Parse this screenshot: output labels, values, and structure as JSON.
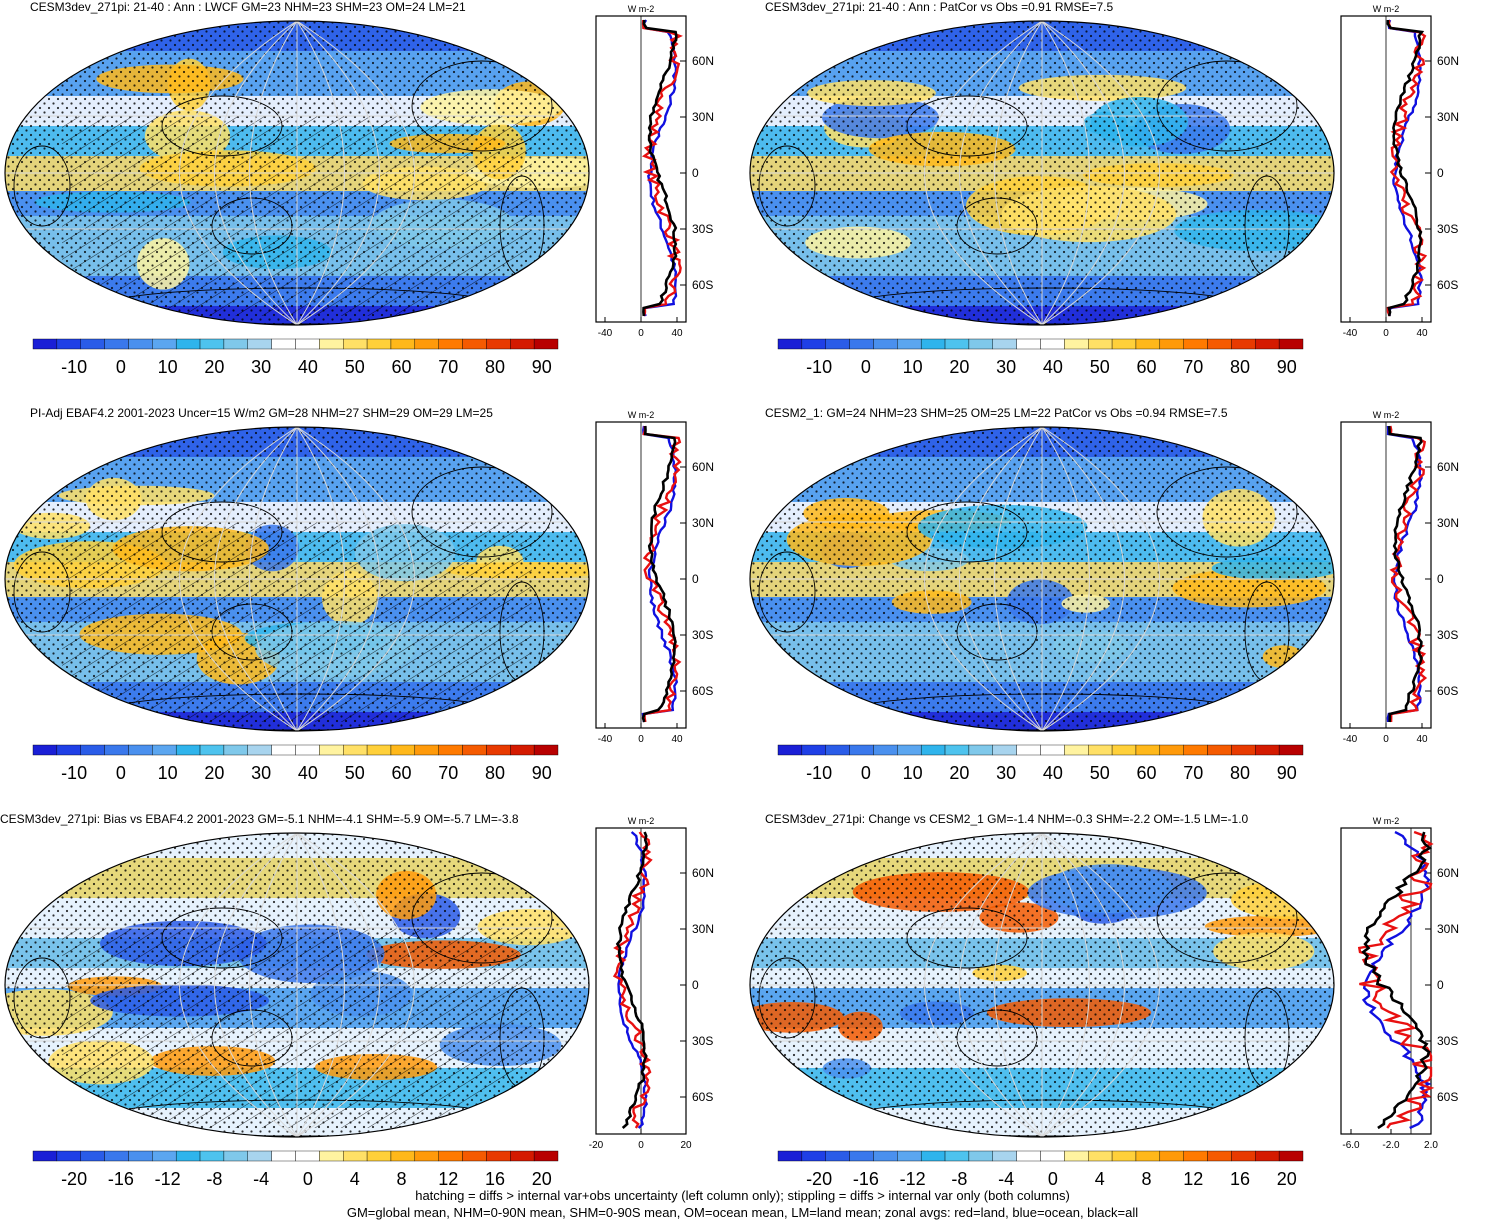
{
  "panels": [
    {
      "title": "CESM3dev_271pi: 21-40 : Ann : LWCF GM=23 NHM=23 SHM=23 OM=24 LM=21",
      "colorbar": {
        "labels": [
          "-10",
          "0",
          "10",
          "20",
          "30",
          "40",
          "50",
          "60",
          "70",
          "80",
          "90"
        ]
      },
      "zonal": {
        "units": "W m-2",
        "lat_labels": [
          "60N",
          "30N",
          "0",
          "30S",
          "60S"
        ],
        "x_ticks": [
          "-40",
          "0",
          "40"
        ],
        "xlim": [
          -50,
          50
        ]
      },
      "hatched": true
    },
    {
      "title": "CESM3dev_271pi: 21-40 : Ann : PatCor vs Obs =0.91 RMSE=7.5",
      "colorbar": {
        "labels": [
          "-10",
          "0",
          "10",
          "20",
          "30",
          "40",
          "50",
          "60",
          "70",
          "80",
          "90"
        ]
      },
      "zonal": {
        "units": "W m-2",
        "lat_labels": [
          "60N",
          "30N",
          "0",
          "30S",
          "60S"
        ],
        "x_ticks": [
          "-40",
          "0",
          "40"
        ],
        "xlim": [
          -50,
          50
        ]
      },
      "hatched": false
    },
    {
      "title": "PI-Adj EBAF4.2 2001-2023 Uncer=15 W/m2 GM=28 NHM=27 SHM=29 OM=29 LM=25",
      "colorbar": {
        "labels": [
          "-10",
          "0",
          "10",
          "20",
          "30",
          "40",
          "50",
          "60",
          "70",
          "80",
          "90"
        ]
      },
      "zonal": {
        "units": "W m-2",
        "lat_labels": [
          "60N",
          "30N",
          "0",
          "30S",
          "60S"
        ],
        "x_ticks": [
          "-40",
          "0",
          "40"
        ],
        "xlim": [
          -50,
          50
        ]
      },
      "hatched": true
    },
    {
      "title": "CESM2_1: GM=24 NHM=23 SHM=25 OM=25 LM=22 PatCor vs Obs =0.94 RMSE=7.5",
      "colorbar": {
        "labels": [
          "-10",
          "0",
          "10",
          "20",
          "30",
          "40",
          "50",
          "60",
          "70",
          "80",
          "90"
        ]
      },
      "zonal": {
        "units": "W m-2",
        "lat_labels": [
          "60N",
          "30N",
          "0",
          "30S",
          "60S"
        ],
        "x_ticks": [
          "-40",
          "0",
          "40"
        ],
        "xlim": [
          -50,
          50
        ]
      },
      "hatched": false
    },
    {
      "title": "CESM3dev_271pi: Bias vs EBAF4.2 2001-2023 GM=-5.1 NHM=-4.1 SHM=-5.9 OM=-5.7 LM=-3.8",
      "colorbar": {
        "labels": [
          "-20",
          "-16",
          "-12",
          "-8",
          "-4",
          "0",
          "4",
          "8",
          "12",
          "16",
          "20"
        ]
      },
      "zonal": {
        "units": "W m-2",
        "lat_labels": [
          "60N",
          "30N",
          "0",
          "30S",
          "60S"
        ],
        "x_ticks": [
          "-20",
          "0",
          "20"
        ],
        "xlim": [
          -20,
          20
        ]
      },
      "hatched": true
    },
    {
      "title": "CESM3dev_271pi: Change vs CESM2_1 GM=-1.4 NHM=-0.3 SHM=-2.2 OM=-1.5 LM=-1.0",
      "colorbar": {
        "labels": [
          "-20",
          "-16",
          "-12",
          "-8",
          "-4",
          "0",
          "4",
          "8",
          "12",
          "16",
          "20"
        ]
      },
      "zonal": {
        "units": "W m-2",
        "lat_labels": [
          "60N",
          "30N",
          "0",
          "30S",
          "60S"
        ],
        "x_ticks": [
          "-6.0",
          "-2.0",
          "2.0"
        ],
        "xlim": [
          -7,
          2
        ]
      },
      "hatched": false
    }
  ],
  "footer": {
    "line1": "hatching = diffs > internal var+obs uncertainty (left column only); stippling = diffs > internal var only (both columns)",
    "line2": "GM=global mean, NHM=0-90N mean, SHM=0-90S mean, OM=ocean mean, LM=land mean; zonal avgs: red=land, blue=ocean, black=all"
  },
  "colors": {
    "scale": [
      "#1a1fd6",
      "#1f3fe6",
      "#2a5ce8",
      "#3a78ec",
      "#4a90ee",
      "#5ba6f0",
      "#2fb4ec",
      "#4ec3ee",
      "#7fc8ea",
      "#a8d4ee",
      "#ffffff",
      "#ffffff",
      "#fff3a0",
      "#ffe066",
      "#ffd03a",
      "#ffb81a",
      "#ff9a0a",
      "#ff7a00",
      "#f55a00",
      "#e83a00",
      "#d41a00",
      "#b80000"
    ],
    "land": "#c8c8c8",
    "ocean_zonal": "#1010e0",
    "land_zonal": "#e81010",
    "all_zonal": "#000000"
  }
}
